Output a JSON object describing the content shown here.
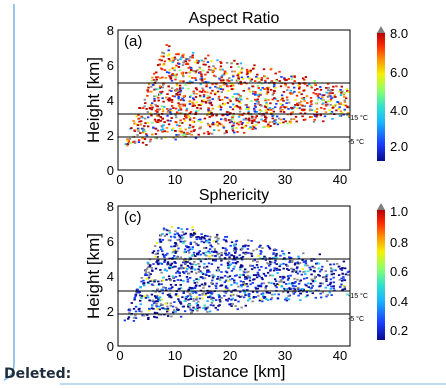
{
  "panels": [
    {
      "title": "Aspect Ratio",
      "tag": "(a)",
      "ylabel": "Height [km]",
      "xlabel": "",
      "xticks": [
        "0",
        "10",
        "20",
        "30",
        "40"
      ],
      "yticks": [
        "0",
        "2",
        "4",
        "6",
        "8"
      ],
      "iso_labels": [
        "-15 °C",
        "-5 °C"
      ],
      "colorbar": {
        "ticks": [
          "2.0",
          "4.0",
          "6.0",
          "8.0"
        ],
        "range": [
          1.0,
          8.0
        ],
        "colors": [
          "#0a0a8c",
          "#1a3cff",
          "#19b4ff",
          "#2fe0d0",
          "#8cff6e",
          "#f5f000",
          "#ff8c00",
          "#ff2a00",
          "#b80000"
        ]
      }
    },
    {
      "title": "Sphericity",
      "tag": "(c)",
      "ylabel": "Height [km]",
      "xlabel": "Distance [km]",
      "xticks": [
        "0",
        "10",
        "20",
        "30",
        "40"
      ],
      "yticks": [
        "0",
        "2",
        "4",
        "6",
        "8"
      ],
      "iso_labels": [
        "-15 °C",
        "-5 °C"
      ],
      "colorbar": {
        "ticks": [
          "0.2",
          "0.4",
          "0.6",
          "0.8",
          "1.0"
        ],
        "range": [
          0.1,
          1.0
        ],
        "colors": [
          "#0a0a8c",
          "#1a3cff",
          "#19b4ff",
          "#2fe0d0",
          "#8cff6e",
          "#f5f000",
          "#ff8c00",
          "#ff2a00",
          "#b80000"
        ]
      }
    }
  ],
  "footer": {
    "label": "Deleted:"
  }
}
